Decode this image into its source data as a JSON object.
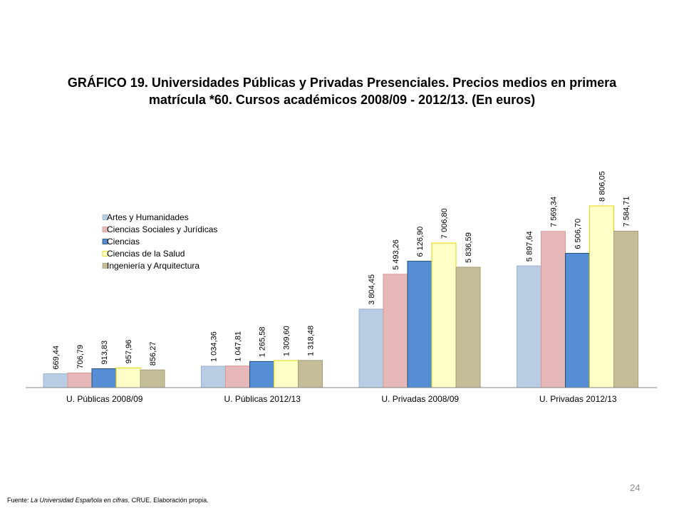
{
  "chart_data": {
    "type": "bar",
    "title": "GRÁFICO 19.  Universidades Públicas y Privadas Presenciales. Precios medios en primera matrícula *60. Cursos académicos 2008/09 - 2012/13. (En euros)",
    "xlabel": "",
    "ylabel": "",
    "ylim": [
      0,
      9000
    ],
    "grid": false,
    "legend_position": "left, inside plot",
    "categories": [
      "U. Públicas 2008/09",
      "U. Públicas 2012/13",
      "U. Privadas  2008/09",
      "U. Privadas  2012/13"
    ],
    "series": [
      {
        "name": "Artes y Humanidades",
        "color": "#b8cce4",
        "stroke": "#95b3d7",
        "values": [
          669.44,
          1034.36,
          3804.45,
          5897.64
        ],
        "labels": [
          "669,44",
          "1 034,36",
          "3 804,45",
          "5 897,64"
        ]
      },
      {
        "name": "Ciencias Sociales y Jurídicas",
        "color": "#e6b9b8",
        "stroke": "#d99694",
        "values": [
          706.79,
          1047.81,
          5493.26,
          7569.34
        ],
        "labels": [
          "706,79",
          "1 047,81",
          "5 493,26",
          "7 569,34"
        ]
      },
      {
        "name": "Ciencias",
        "color": "#558ed5",
        "stroke": "#1f4e79",
        "values": [
          913.83,
          1265.58,
          6126.9,
          6506.7
        ],
        "labels": [
          "913,83",
          "1 265,58",
          "6 126,90",
          "6 506,70"
        ]
      },
      {
        "name": "Ciencias de la Salud",
        "color": "#ffffc8",
        "stroke": "#e6d800",
        "values": [
          957.96,
          1309.6,
          7006.8,
          8806.05
        ],
        "labels": [
          "957,96",
          "1 309,60",
          "7 006,80",
          "8 806,05"
        ]
      },
      {
        "name": "Ingeniería y Arquitectura",
        "color": "#c4bd97",
        "stroke": "#a59f7a",
        "values": [
          856.27,
          1318.48,
          5836.59,
          7584.71
        ],
        "labels": [
          "856,27",
          "1 318,48",
          "5 836,59",
          "7 584,71"
        ]
      }
    ]
  },
  "source": {
    "prefix": "Fuente: ",
    "italic": "La Universidad Española en cifras",
    "suffix": ". CRUE. Elaboración propia."
  },
  "page_number": "24"
}
